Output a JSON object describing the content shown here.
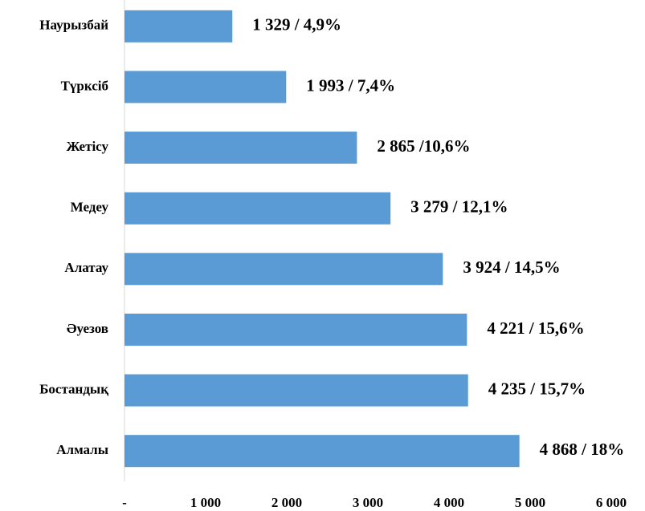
{
  "chart_data": {
    "type": "bar",
    "orientation": "horizontal",
    "categories": [
      "Наурызбай",
      "Түрксіб",
      "Жетісу",
      "Медеу",
      "Алатау",
      "Әуезов",
      "Бостандық",
      "Алмалы"
    ],
    "values": [
      1329,
      1993,
      2865,
      3279,
      3924,
      4221,
      4235,
      4868
    ],
    "value_labels": [
      "1 329 / 4,9%",
      "1 993 / 7,4%",
      "2 865 /10,6%",
      "3 279 / 12,1%",
      "3 924 / 14,5%",
      "4 221 / 15,6%",
      "4 235 / 15,7%",
      "4 868 / 18%"
    ],
    "color": "#5b9bd5",
    "xlim": [
      0,
      6000
    ],
    "xticks": [
      {
        "value": 0,
        "label": "-"
      },
      {
        "value": 1000,
        "label": "1 000"
      },
      {
        "value": 2000,
        "label": "2 000"
      },
      {
        "value": 3000,
        "label": "3 000"
      },
      {
        "value": 4000,
        "label": "4 000"
      },
      {
        "value": 5000,
        "label": "5 000"
      },
      {
        "value": 6000,
        "label": "6 000"
      }
    ],
    "grid": false
  }
}
